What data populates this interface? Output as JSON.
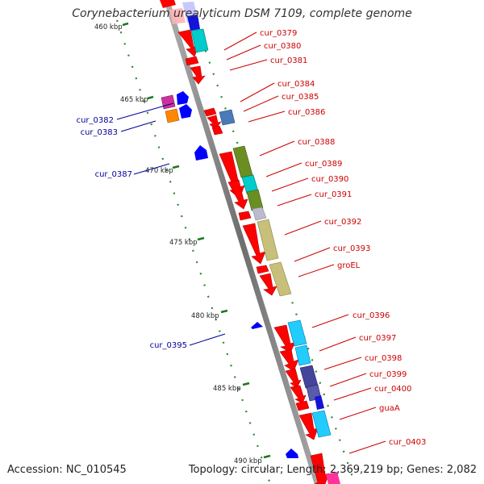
{
  "title": "Corynebacterium urealyticum DSM 7109, complete genome",
  "footer": {
    "accession_label": "Accession:",
    "accession": "NC_010545",
    "topology_label": "Topology:",
    "topology": "circular",
    "length_label": "Length:",
    "length": "2,369,219 bp",
    "genes_label": "Genes:",
    "genes": "2,082"
  },
  "scale_labels": [
    "460 kbp",
    "465 kbp",
    "470 kbp",
    "475 kbp",
    "480 kbp",
    "485 kbp",
    "490 kbp"
  ],
  "colors": {
    "backbone": "#8a8a8a",
    "forward_gene": "#ff0000",
    "reverse_gene": "#0000ff",
    "forward_label": "#cc0000",
    "reverse_label": "#000099",
    "tick": "#1a7a1a"
  },
  "forward_genes": [
    "cur_0379",
    "cur_0380",
    "cur_0381",
    "cur_0384",
    "cur_0385",
    "cur_0386",
    "cur_0388",
    "cur_0389",
    "cur_0390",
    "cur_0391",
    "cur_0392",
    "cur_0393",
    "groEL",
    "cur_0396",
    "cur_0397",
    "cur_0398",
    "cur_0399",
    "cur_0400",
    "guaA",
    "cur_0403"
  ],
  "reverse_genes": [
    "cur_0382",
    "cur_0383",
    "cur_0387",
    "cur_0395"
  ]
}
